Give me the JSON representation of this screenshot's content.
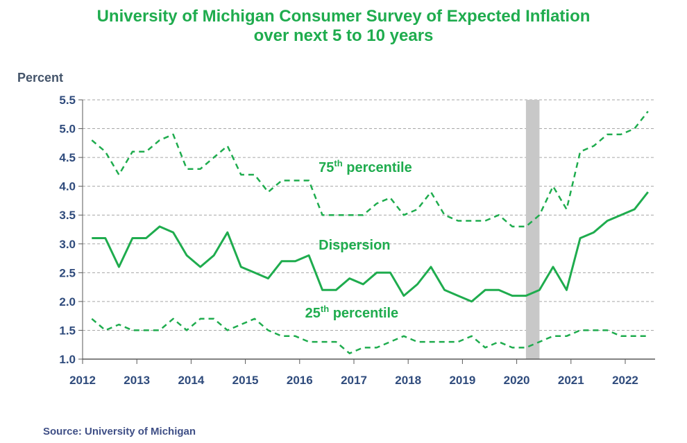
{
  "chart_data": {
    "type": "line",
    "title": "University of Michigan Consumer Survey of Expected Inflation",
    "subtitle": "over next 5 to 10 years",
    "ylabel": "Percent",
    "xlabel": "",
    "ylim": [
      1.0,
      5.5
    ],
    "xlim": [
      2012.0,
      2022.55
    ],
    "y_ticks": [
      "1.0",
      "1.5",
      "2.0",
      "2.5",
      "3.0",
      "3.5",
      "4.0",
      "4.5",
      "5.0",
      "5.5"
    ],
    "x_ticks": [
      "2012",
      "2013",
      "2014",
      "2015",
      "2016",
      "2017",
      "2018",
      "2019",
      "2020",
      "2021",
      "2022"
    ],
    "grid": true,
    "recession_shading": [
      2020.17,
      2020.42
    ],
    "x": [
      2012.17,
      2012.42,
      2012.67,
      2012.92,
      2013.17,
      2013.42,
      2013.67,
      2013.92,
      2014.17,
      2014.42,
      2014.67,
      2014.92,
      2015.17,
      2015.42,
      2015.67,
      2015.92,
      2016.17,
      2016.42,
      2016.67,
      2016.92,
      2017.17,
      2017.42,
      2017.67,
      2017.92,
      2018.17,
      2018.42,
      2018.67,
      2018.92,
      2019.17,
      2019.42,
      2019.67,
      2019.92,
      2020.17,
      2020.42,
      2020.67,
      2020.92,
      2021.17,
      2021.42,
      2021.67,
      2021.92,
      2022.17,
      2022.42
    ],
    "series": [
      {
        "name": "75th percentile",
        "label_superscript": "th",
        "style": "dashed",
        "values": [
          4.8,
          4.6,
          4.2,
          4.6,
          4.6,
          4.8,
          4.9,
          4.3,
          4.3,
          4.5,
          4.7,
          4.2,
          4.2,
          3.9,
          4.1,
          4.1,
          4.1,
          3.5,
          3.5,
          3.5,
          3.5,
          3.7,
          3.8,
          3.5,
          3.6,
          3.9,
          3.5,
          3.4,
          3.4,
          3.4,
          3.5,
          3.3,
          3.3,
          3.5,
          4.0,
          3.6,
          4.6,
          4.7,
          4.9,
          4.9,
          5.0,
          5.3
        ]
      },
      {
        "name": "Dispersion",
        "style": "solid",
        "values": [
          3.1,
          3.1,
          2.6,
          3.1,
          3.1,
          3.3,
          3.2,
          2.8,
          2.6,
          2.8,
          3.2,
          2.6,
          2.5,
          2.4,
          2.7,
          2.7,
          2.8,
          2.2,
          2.2,
          2.4,
          2.3,
          2.5,
          2.5,
          2.1,
          2.3,
          2.6,
          2.2,
          2.1,
          2.0,
          2.2,
          2.2,
          2.1,
          2.1,
          2.2,
          2.6,
          2.2,
          3.1,
          3.2,
          3.4,
          3.5,
          3.6,
          3.9
        ]
      },
      {
        "name": "25th percentile",
        "label_superscript": "th",
        "style": "dashed",
        "values": [
          1.7,
          1.5,
          1.6,
          1.5,
          1.5,
          1.5,
          1.7,
          1.5,
          1.7,
          1.7,
          1.5,
          1.6,
          1.7,
          1.5,
          1.4,
          1.4,
          1.3,
          1.3,
          1.3,
          1.1,
          1.2,
          1.2,
          1.3,
          1.4,
          1.3,
          1.3,
          1.3,
          1.3,
          1.4,
          1.2,
          1.3,
          1.2,
          1.2,
          1.3,
          1.4,
          1.4,
          1.5,
          1.5,
          1.5,
          1.4,
          1.4,
          1.4
        ]
      }
    ],
    "colors": {
      "line": "#1fac4e",
      "text_axis": "#2f4b7c",
      "recession": "#c8c8c8",
      "grid": "#a6a6a6"
    }
  },
  "source": "Source: University of Michigan"
}
